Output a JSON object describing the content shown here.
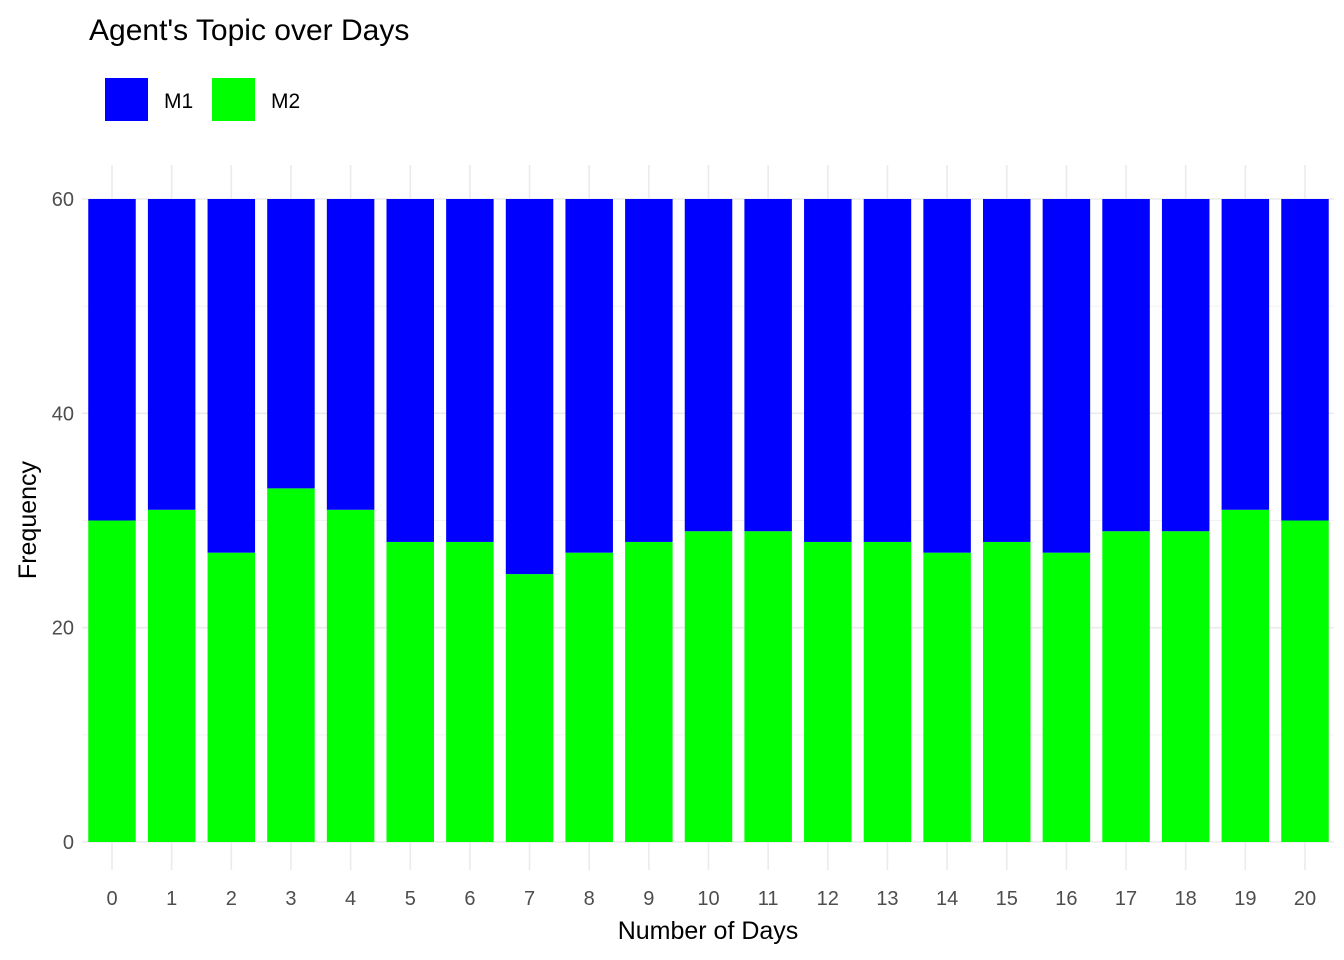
{
  "chart_data": {
    "type": "bar",
    "stacked": true,
    "title": "Agent's Topic over Days",
    "xlabel": "Number of Days",
    "ylabel": "Frequency",
    "categories": [
      "0",
      "1",
      "2",
      "3",
      "4",
      "5",
      "6",
      "7",
      "8",
      "9",
      "10",
      "11",
      "12",
      "13",
      "14",
      "15",
      "16",
      "17",
      "18",
      "19",
      "20"
    ],
    "series": [
      {
        "name": "M1",
        "color": "#0000FF",
        "values": [
          30,
          29,
          33,
          27,
          29,
          32,
          32,
          35,
          33,
          32,
          31,
          31,
          32,
          32,
          33,
          32,
          33,
          31,
          31,
          29,
          30
        ]
      },
      {
        "name": "M2",
        "color": "#00FF00",
        "values": [
          30,
          31,
          27,
          33,
          31,
          28,
          28,
          25,
          27,
          28,
          29,
          29,
          28,
          28,
          27,
          28,
          27,
          29,
          29,
          31,
          30
        ]
      }
    ],
    "ylim": [
      0,
      60
    ],
    "yticks": [
      0,
      20,
      40,
      60
    ],
    "grid": true,
    "legend_position": "top-left"
  }
}
